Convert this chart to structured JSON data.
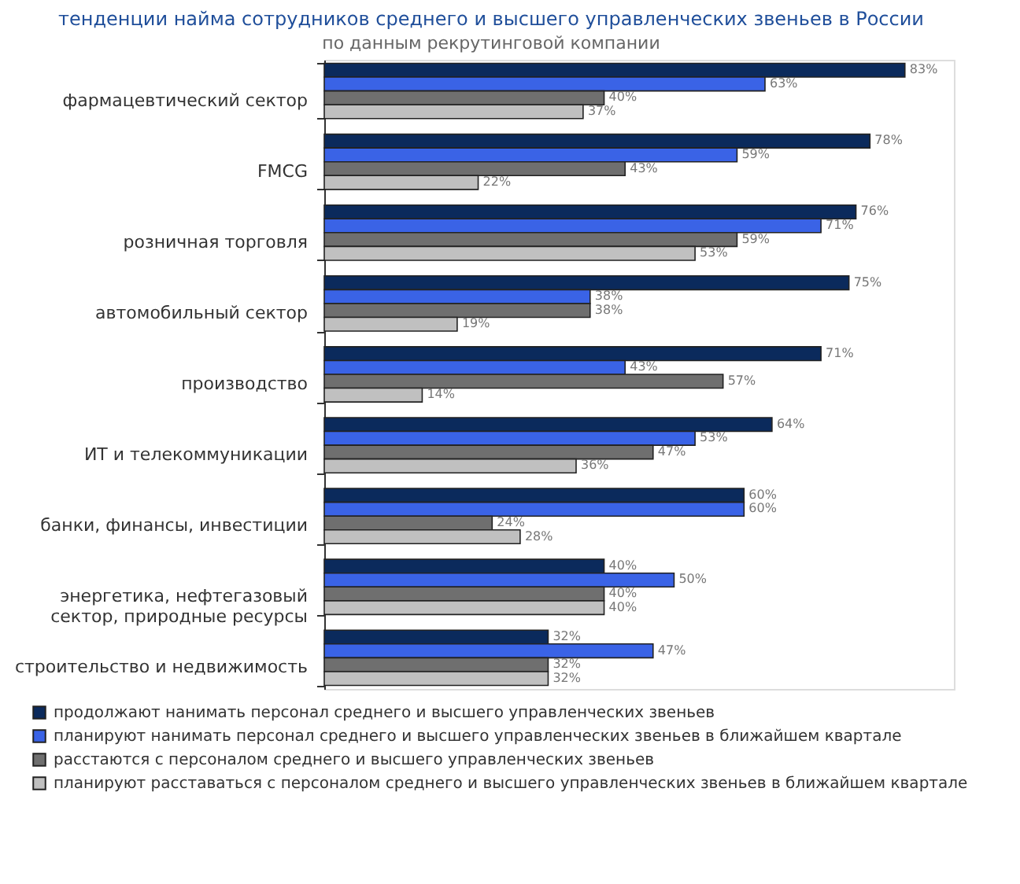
{
  "chart_data": {
    "type": "bar",
    "orientation": "horizontal",
    "title": "тенденции найма сотрудников среднего и высшего управленческих звеньев в России",
    "subtitle": "по данным рекрутинговой компании",
    "categories": [
      "фармацевтический сектор",
      "FMCG",
      "розничная торговля",
      "автомобильный сектор",
      "производство",
      "ИТ и телекоммуникации",
      "банки, финансы, инвестиции",
      "энергетика, нефтегазовый сектор, природные ресурсы",
      "строительство и недвижимость"
    ],
    "series": [
      {
        "name": "продолжают нанимать персонал среднего и высшего управленческих звеньев",
        "color": "#0b2a5c",
        "values": [
          83,
          78,
          76,
          75,
          71,
          64,
          60,
          40,
          32
        ],
        "value_labels": [
          "83%",
          "78%",
          "76%",
          "75%",
          "71%",
          "64%",
          "60%",
          "40%",
          "32%"
        ]
      },
      {
        "name": "планируют нанимать персонал среднего и высшего управленческих звеньев в ближайшем квартале",
        "color": "#3a63e6",
        "values": [
          63,
          59,
          71,
          38,
          43,
          53,
          60,
          50,
          47
        ],
        "value_labels": [
          "63%",
          "59%",
          "71%",
          "38%",
          "43%",
          "53%",
          "60%",
          "50%",
          "47%"
        ]
      },
      {
        "name": "расстаются с персоналом среднего и высшего управленческих звеньев",
        "color": "#6f6f6f",
        "values": [
          40,
          43,
          59,
          38,
          57,
          47,
          24,
          40,
          32
        ],
        "value_labels": [
          "40%",
          "43%",
          "59%",
          "38%",
          "57%",
          "47%",
          "24%",
          "40%",
          "32%"
        ]
      },
      {
        "name": "планируют расставаться с персоналом среднего и высшего управленческих звеньев в ближайшем квартале",
        "color": "#c0c0c0",
        "values": [
          37,
          22,
          53,
          19,
          14,
          36,
          28,
          40,
          32
        ],
        "value_labels": [
          "37%",
          "22%",
          "53%",
          "19%",
          "14%",
          "36%",
          "28%",
          "40%",
          "32%"
        ]
      }
    ],
    "grid": false,
    "legend": "bottom",
    "tick_labels": "y"
  }
}
